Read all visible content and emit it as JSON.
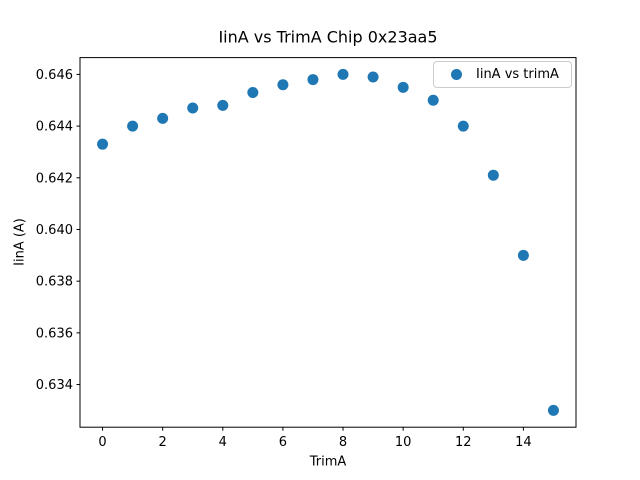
{
  "chart_data": {
    "type": "scatter",
    "title": "IinA vs TrimA Chip 0x23aa5",
    "xlabel": "TrimA",
    "ylabel": "IinA (A)",
    "legend_entries": [
      "IinA vs trimA"
    ],
    "legend_position": "upper right",
    "marker_color": "#1f77b4",
    "axes_color": "#000000",
    "legend_border_color": "#cccccc",
    "grid": false,
    "x": [
      0,
      1,
      2,
      3,
      4,
      5,
      6,
      7,
      8,
      9,
      10,
      11,
      12,
      13,
      14,
      15
    ],
    "y": [
      0.6433,
      0.644,
      0.6443,
      0.6447,
      0.6448,
      0.6453,
      0.6456,
      0.6458,
      0.646,
      0.6459,
      0.6455,
      0.645,
      0.644,
      0.6421,
      0.639,
      0.633
    ],
    "xlim": [
      -0.75,
      15.75
    ],
    "ylim": [
      0.63235,
      0.64665
    ],
    "xticks": [
      0,
      2,
      4,
      6,
      8,
      10,
      12,
      14
    ],
    "yticks": [
      0.634,
      0.636,
      0.638,
      0.64,
      0.642,
      0.644,
      0.646
    ]
  }
}
